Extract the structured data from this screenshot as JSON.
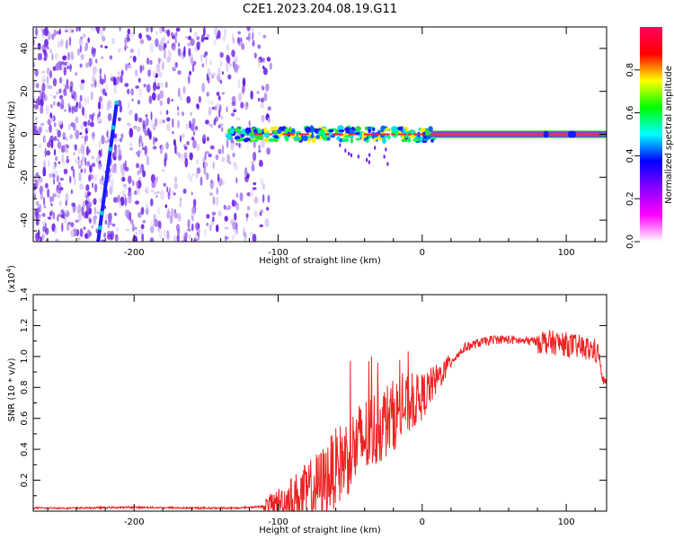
{
  "figure": {
    "title": "C2E1.2023.204.08.19.G11"
  },
  "chart_data": [
    {
      "type": "heatmap",
      "title": "C2E1.2023.204.08.19.G11",
      "xlabel": "Height of straight line (km)",
      "ylabel": "Frequency (Hz)",
      "xlim": [
        -270,
        128
      ],
      "ylim": [
        -50,
        50
      ],
      "x_ticks": [
        -200,
        -100,
        0,
        100
      ],
      "y_ticks": [
        -40,
        -20,
        0,
        20,
        40
      ],
      "colorbar": {
        "label": "Normalized spectral amplitude",
        "range": [
          0,
          1
        ],
        "ticks": [
          0.0,
          0.2,
          0.4,
          0.6,
          0.8
        ],
        "colormap": [
          "#ffffff",
          "#ff00ff",
          "#8800ff",
          "#0000ff",
          "#00ffff",
          "#00ff00",
          "#ffff00",
          "#ff0000",
          "#ff0060"
        ]
      },
      "features": {
        "noise_region_x": [
          -270,
          -105
        ],
        "diagonal_streak": [
          [
            -225,
            -50
          ],
          [
            -212,
            15
          ]
        ],
        "carrier_line_frequency": 0,
        "carrier_line_start_x": -135
      }
    },
    {
      "type": "line",
      "xlabel": "Height of straight line (km)",
      "ylabel": "SNR (10 * v/v)",
      "exponent_label": "(x10",
      "exponent_power": "4",
      "exponent_close": ")",
      "xlim": [
        -270,
        128
      ],
      "ylim": [
        0,
        1.4
      ],
      "x_ticks": [
        -200,
        -100,
        0,
        100
      ],
      "y_ticks": [
        0.2,
        0.4,
        0.6,
        0.8,
        1.0,
        1.2,
        1.4
      ],
      "line_color": "#ee2222",
      "series": [
        {
          "x": [
            -270,
            -240,
            -200,
            -160,
            -130,
            -110,
            -100,
            -90,
            -80,
            -70,
            -60,
            -50,
            -40,
            -30,
            -20,
            -10,
            0,
            10,
            20,
            30,
            40,
            50,
            60,
            70,
            80,
            90,
            100,
            110,
            120,
            123,
            125,
            128
          ],
          "y": [
            0.02,
            0.02,
            0.025,
            0.02,
            0.02,
            0.03,
            0.05,
            0.08,
            0.12,
            0.18,
            0.28,
            0.38,
            0.47,
            0.55,
            0.62,
            0.68,
            0.74,
            0.85,
            0.97,
            1.06,
            1.09,
            1.11,
            1.11,
            1.1,
            1.1,
            1.09,
            1.08,
            1.06,
            1.04,
            1.0,
            0.85,
            0.83
          ]
        }
      ]
    }
  ]
}
